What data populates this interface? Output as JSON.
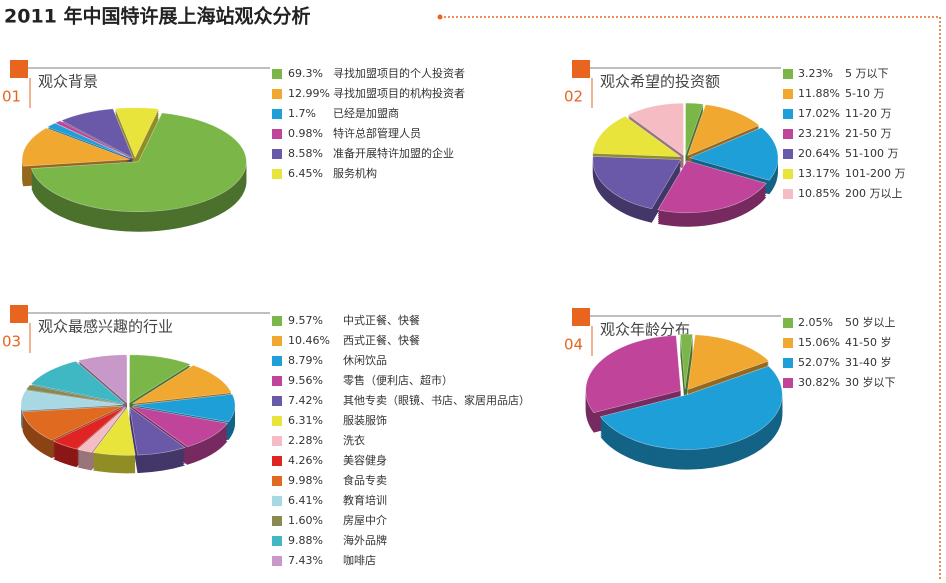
{
  "title": "2011 年中国特许展上海站观众分析",
  "chart_data": [
    {
      "type": "pie",
      "number": "01",
      "title": "观众背景",
      "categories": [
        "寻找加盟项目的个人投资者",
        "寻找加盟项目的机构投资者",
        "已经是加盟商",
        "特许总部管理人员",
        "准备开展特许加盟的企业",
        "服务机构"
      ],
      "values": [
        69.3,
        12.99,
        1.7,
        0.98,
        8.58,
        6.45
      ],
      "value_labels": [
        "69.3%",
        "12.99%",
        "1.7%",
        "0.98%",
        "8.58%",
        "6.45%"
      ],
      "colors": [
        "#7ab648",
        "#f0a830",
        "#1e9fd8",
        "#c0449a",
        "#6a58a8",
        "#e8e43c"
      ]
    },
    {
      "type": "pie",
      "number": "02",
      "title": "观众希望的投资额",
      "categories": [
        "5 万以下",
        "5-10 万",
        "11-20 万",
        "21-50 万",
        "51-100 万",
        "101-200 万",
        "200 万以上"
      ],
      "values": [
        3.23,
        11.88,
        17.02,
        23.21,
        20.64,
        13.17,
        10.85
      ],
      "value_labels": [
        "3.23%",
        "11.88%",
        "17.02%",
        "23.21%",
        "20.64%",
        "13.17%",
        "10.85%"
      ],
      "colors": [
        "#7ab648",
        "#f0a830",
        "#1e9fd8",
        "#c0449a",
        "#6a58a8",
        "#e8e43c",
        "#f6bcc4"
      ]
    },
    {
      "type": "pie",
      "number": "03",
      "title": "观众最感兴趣的行业",
      "categories": [
        "中式正餐、快餐",
        "西式正餐、快餐",
        "休闲饮品",
        "零售（便利店、超市）",
        "其他专卖（眼镜、书店、家居用品店）",
        "服装服饰",
        "洗衣",
        "美容健身",
        "食品专卖",
        "教育培训",
        "房屋中介",
        "海外品牌",
        "咖啡店"
      ],
      "values": [
        9.57,
        10.46,
        8.79,
        9.56,
        7.42,
        6.31,
        2.28,
        4.26,
        9.98,
        6.41,
        1.6,
        9.88,
        7.43
      ],
      "value_labels": [
        "9.57%",
        "10.46%",
        "8.79%",
        "9.56%",
        "7.42%",
        "6.31%",
        "2.28%",
        "4.26%",
        "9.98%",
        "6.41%",
        "1.60%",
        "9.88%",
        "7.43%"
      ],
      "colors": [
        "#7ab648",
        "#f0a830",
        "#1e9fd8",
        "#c0449a",
        "#6a58a8",
        "#e8e43c",
        "#f6bcc4",
        "#e02424",
        "#e06a20",
        "#a8d8e4",
        "#8a8a50",
        "#40b8c4",
        "#c898c8"
      ]
    },
    {
      "type": "pie",
      "number": "04",
      "title": "观众年龄分布",
      "categories": [
        "50 岁以上",
        "41-50 岁",
        "31-40 岁",
        "30 岁以下"
      ],
      "values": [
        2.05,
        15.06,
        52.07,
        30.82
      ],
      "value_labels": [
        "2.05%",
        "15.06%",
        "52.07%",
        "30.82%"
      ],
      "colors": [
        "#7ab648",
        "#f0a830",
        "#1e9fd8",
        "#c0449a"
      ]
    }
  ]
}
